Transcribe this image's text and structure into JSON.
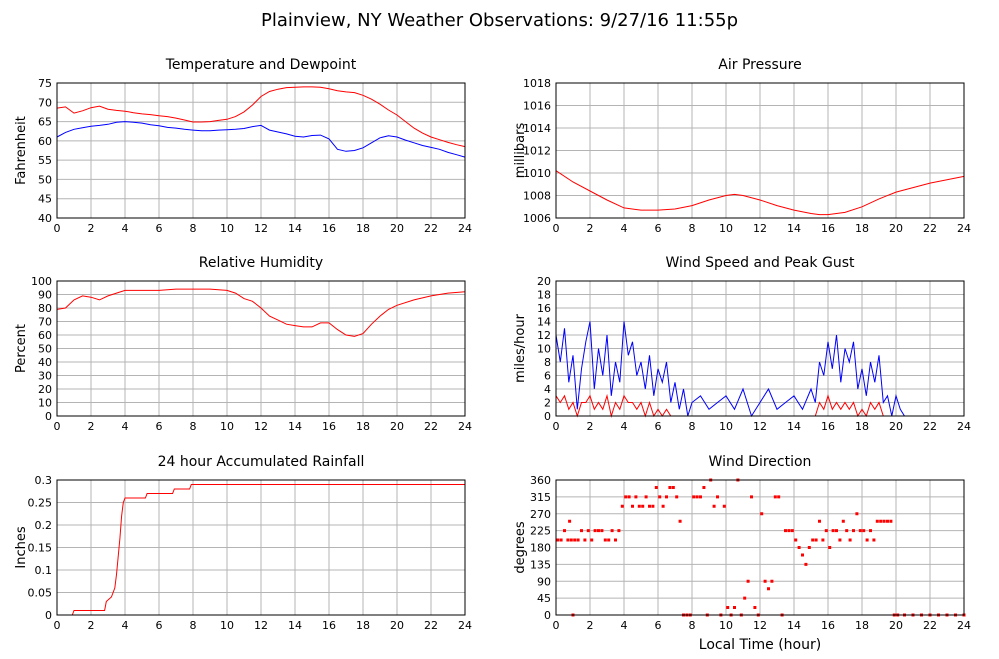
{
  "page_title": "Plainview, NY Weather Observations: 9/27/16 11:55p",
  "x_axis_label": "Local Time (hour)",
  "chart_data": [
    {
      "id": "temp",
      "type": "line",
      "title": "Temperature and Dewpoint",
      "xlabel": "",
      "ylabel": "Fahrenheit",
      "xlim": [
        0,
        24
      ],
      "ylim": [
        40,
        75
      ],
      "xticks": [
        0,
        2,
        4,
        6,
        8,
        10,
        12,
        14,
        16,
        18,
        20,
        22,
        24
      ],
      "yticks": [
        40,
        45,
        50,
        55,
        60,
        65,
        70,
        75
      ],
      "grid": true,
      "x": [
        0,
        0.5,
        1,
        1.5,
        2,
        2.5,
        3,
        3.5,
        4,
        4.5,
        5,
        5.5,
        6,
        6.5,
        7,
        7.5,
        8,
        8.5,
        9,
        9.5,
        10,
        10.5,
        11,
        11.5,
        12,
        12.5,
        13,
        13.5,
        14,
        14.5,
        15,
        15.5,
        16,
        16.5,
        17,
        17.5,
        18,
        18.5,
        19,
        19.5,
        20,
        20.5,
        21,
        21.5,
        22,
        22.5,
        23,
        23.5,
        24
      ],
      "series": [
        {
          "color": "#ff0000",
          "values": [
            68.5,
            68.8,
            67.2,
            67.8,
            68.6,
            69.0,
            68.2,
            67.9,
            67.7,
            67.3,
            67.0,
            66.8,
            66.5,
            66.3,
            65.9,
            65.4,
            64.9,
            64.9,
            65.0,
            65.3,
            65.6,
            66.3,
            67.5,
            69.3,
            71.5,
            72.8,
            73.4,
            73.8,
            73.9,
            74.0,
            74.0,
            73.9,
            73.5,
            73.0,
            72.7,
            72.5,
            71.8,
            70.8,
            69.5,
            68.0,
            66.7,
            65.0,
            63.3,
            62.0,
            61.0,
            60.3,
            59.6,
            59.0,
            58.5
          ]
        },
        {
          "color": "#0000ff",
          "values": [
            61.0,
            62.2,
            63.0,
            63.4,
            63.8,
            64.0,
            64.3,
            64.8,
            65.0,
            64.8,
            64.6,
            64.2,
            63.9,
            63.5,
            63.3,
            63.0,
            62.8,
            62.6,
            62.6,
            62.8,
            62.9,
            63.0,
            63.2,
            63.7,
            64.0,
            62.8,
            62.3,
            61.8,
            61.2,
            61.0,
            61.4,
            61.5,
            60.5,
            57.8,
            57.3,
            57.5,
            58.2,
            59.5,
            60.8,
            61.3,
            61.0,
            60.2,
            59.5,
            58.8,
            58.3,
            57.8,
            57.0,
            56.4,
            55.8
          ]
        }
      ]
    },
    {
      "id": "pressure",
      "type": "line",
      "title": "Air Pressure",
      "xlabel": "",
      "ylabel": "millibars",
      "xlim": [
        0,
        24
      ],
      "ylim": [
        1006,
        1018
      ],
      "xticks": [
        0,
        2,
        4,
        6,
        8,
        10,
        12,
        14,
        16,
        18,
        20,
        22,
        24
      ],
      "yticks": [
        1006,
        1008,
        1010,
        1012,
        1014,
        1016,
        1018
      ],
      "grid": true,
      "x": [
        0,
        1,
        2,
        3,
        4,
        5,
        6,
        7,
        8,
        9,
        10,
        10.5,
        11,
        12,
        13,
        14,
        15,
        15.5,
        16,
        17,
        18,
        19,
        20,
        21,
        22,
        23,
        24
      ],
      "series": [
        {
          "color": "#ff0000",
          "values": [
            1010.2,
            1009.2,
            1008.4,
            1007.6,
            1006.9,
            1006.7,
            1006.7,
            1006.8,
            1007.1,
            1007.6,
            1008.0,
            1008.1,
            1008.0,
            1007.6,
            1007.1,
            1006.7,
            1006.4,
            1006.3,
            1006.3,
            1006.5,
            1007.0,
            1007.7,
            1008.3,
            1008.7,
            1009.1,
            1009.4,
            1009.7
          ]
        }
      ]
    },
    {
      "id": "humidity",
      "type": "line",
      "title": "Relative Humidity",
      "xlabel": "",
      "ylabel": "Percent",
      "xlim": [
        0,
        24
      ],
      "ylim": [
        0,
        100
      ],
      "xticks": [
        0,
        2,
        4,
        6,
        8,
        10,
        12,
        14,
        16,
        18,
        20,
        22,
        24
      ],
      "yticks": [
        0,
        10,
        20,
        30,
        40,
        50,
        60,
        70,
        80,
        90,
        100
      ],
      "grid": true,
      "x": [
        0,
        0.5,
        1,
        1.5,
        2,
        2.5,
        3,
        3.5,
        4,
        5,
        6,
        7,
        8,
        9,
        10,
        10.5,
        11,
        11.5,
        12,
        12.5,
        13,
        13.5,
        14,
        14.5,
        15,
        15.5,
        16,
        16.5,
        17,
        17.5,
        18,
        18.5,
        19,
        19.5,
        20,
        21,
        22,
        23,
        24
      ],
      "series": [
        {
          "color": "#ff0000",
          "values": [
            79,
            80,
            86,
            89,
            88,
            86,
            89,
            91,
            93,
            93,
            93,
            94,
            94,
            94,
            93,
            91,
            87,
            85,
            80,
            74,
            71,
            68,
            67,
            66,
            66,
            69,
            69,
            64,
            60,
            59,
            61,
            68,
            74,
            79,
            82,
            86,
            89,
            91,
            92
          ]
        }
      ]
    },
    {
      "id": "wind",
      "type": "line",
      "title": "Wind Speed and Peak Gust",
      "xlabel": "",
      "ylabel": "miles/hour",
      "xlim": [
        0,
        24
      ],
      "ylim": [
        0,
        20
      ],
      "xticks": [
        0,
        2,
        4,
        6,
        8,
        10,
        12,
        14,
        16,
        18,
        20,
        22,
        24
      ],
      "yticks": [
        0,
        2,
        4,
        6,
        8,
        10,
        12,
        14,
        16,
        18,
        20
      ],
      "grid": true,
      "x": [
        0,
        0.25,
        0.5,
        0.75,
        1,
        1.25,
        1.5,
        1.75,
        2,
        2.25,
        2.5,
        2.75,
        3,
        3.25,
        3.5,
        3.75,
        4,
        4.25,
        4.5,
        4.75,
        5,
        5.25,
        5.5,
        5.75,
        6,
        6.25,
        6.5,
        6.75,
        7,
        7.25,
        7.5,
        7.75,
        8,
        8.5,
        9,
        9.5,
        10,
        10.5,
        11,
        11.5,
        12,
        12.5,
        13,
        13.5,
        14,
        14.5,
        15,
        15.25,
        15.5,
        15.75,
        16,
        16.25,
        16.5,
        16.75,
        17,
        17.25,
        17.5,
        17.75,
        18,
        18.25,
        18.5,
        18.75,
        19,
        19.25,
        19.5,
        19.75,
        20,
        20.25,
        20.5,
        21,
        22,
        23,
        24
      ],
      "series": [
        {
          "color": "#0000ff",
          "values": [
            12,
            8,
            13,
            5,
            9,
            1,
            7,
            11,
            14,
            4,
            10,
            6,
            12,
            3,
            8,
            5,
            14,
            9,
            11,
            6,
            8,
            4,
            9,
            3,
            7,
            5,
            8,
            2,
            5,
            1,
            4,
            0,
            2,
            3,
            1,
            2,
            3,
            1,
            4,
            0,
            2,
            4,
            1,
            2,
            3,
            1,
            4,
            2,
            8,
            6,
            11,
            7,
            12,
            5,
            10,
            8,
            11,
            4,
            7,
            3,
            8,
            5,
            9,
            2,
            3,
            0,
            3,
            1,
            0,
            0,
            0,
            0,
            0
          ]
        },
        {
          "color": "#ff0000",
          "values": [
            3,
            2,
            3,
            1,
            2,
            0,
            2,
            2,
            3,
            1,
            2,
            1,
            3,
            0,
            2,
            1,
            3,
            2,
            2,
            1,
            2,
            0,
            2,
            0,
            1,
            0,
            1,
            0,
            0,
            0,
            0,
            0,
            0,
            0,
            0,
            0,
            0,
            0,
            0,
            0,
            0,
            0,
            0,
            0,
            0,
            0,
            0,
            0,
            2,
            1,
            3,
            1,
            2,
            1,
            2,
            1,
            2,
            0,
            1,
            0,
            2,
            1,
            2,
            0,
            0,
            0,
            0,
            0,
            0,
            0,
            0,
            0,
            0
          ]
        }
      ]
    },
    {
      "id": "rain",
      "type": "line",
      "title": "24 hour Accumulated Rainfall",
      "xlabel": "",
      "ylabel": "Inches",
      "xlim": [
        0,
        24
      ],
      "ylim": [
        0,
        0.3
      ],
      "xticks": [
        0,
        2,
        4,
        6,
        8,
        10,
        12,
        14,
        16,
        18,
        20,
        22,
        24
      ],
      "yticks": [
        0,
        0.05,
        0.1,
        0.15,
        0.2,
        0.25,
        0.3
      ],
      "grid": true,
      "x": [
        0,
        0.9,
        1,
        2.8,
        2.9,
        3.2,
        3.4,
        3.5,
        3.6,
        3.7,
        3.8,
        3.9,
        4.0,
        5.2,
        5.3,
        6.8,
        6.9,
        7.8,
        7.9,
        24
      ],
      "series": [
        {
          "color": "#ff0000",
          "values": [
            0,
            0,
            0.01,
            0.01,
            0.03,
            0.04,
            0.06,
            0.09,
            0.13,
            0.17,
            0.22,
            0.25,
            0.26,
            0.26,
            0.27,
            0.27,
            0.28,
            0.28,
            0.29,
            0.29
          ]
        }
      ]
    },
    {
      "id": "direction",
      "type": "scatter",
      "title": "Wind Direction",
      "xlabel": "Local Time (hour)",
      "ylabel": "degrees",
      "xlim": [
        0,
        24
      ],
      "ylim": [
        0,
        360
      ],
      "xticks": [
        0,
        2,
        4,
        6,
        8,
        10,
        12,
        14,
        16,
        18,
        20,
        22,
        24
      ],
      "yticks": [
        0,
        45,
        90,
        135,
        180,
        225,
        270,
        315,
        360
      ],
      "grid": true,
      "series": [
        {
          "color": "#ff0000",
          "x": [
            0.1,
            0.3,
            0.5,
            0.7,
            0.8,
            0.9,
            1.0,
            1.1,
            1.3,
            1.5,
            1.7,
            1.9,
            2.1,
            2.3,
            2.5,
            2.7,
            2.9,
            3.1,
            3.3,
            3.5,
            3.7,
            3.9,
            4.1,
            4.3,
            4.5,
            4.7,
            4.9,
            5.1,
            5.3,
            5.5,
            5.7,
            5.9,
            6.1,
            6.3,
            6.5,
            6.7,
            6.9,
            7.1,
            7.3,
            7.5,
            7.7,
            7.9,
            8.1,
            8.3,
            8.5,
            8.7,
            8.9,
            9.1,
            9.3,
            9.5,
            9.7,
            9.9,
            10.1,
            10.3,
            10.5,
            10.7,
            10.9,
            11.1,
            11.3,
            11.5,
            11.7,
            11.9,
            12.1,
            12.3,
            12.5,
            12.7,
            12.9,
            13.1,
            13.3,
            13.5,
            13.7,
            13.9,
            14.1,
            14.3,
            14.5,
            14.7,
            14.9,
            15.1,
            15.3,
            15.5,
            15.7,
            15.9,
            16.1,
            16.3,
            16.5,
            16.7,
            16.9,
            17.1,
            17.3,
            17.5,
            17.7,
            17.9,
            18.1,
            18.3,
            18.5,
            18.7,
            18.9,
            19.1,
            19.3,
            19.5,
            19.7,
            19.9,
            20.1,
            20.5,
            21.0,
            21.5,
            22.0,
            22.5,
            23.0,
            23.5,
            24.0
          ],
          "values": [
            200,
            200,
            225,
            200,
            250,
            200,
            0,
            200,
            200,
            225,
            200,
            225,
            200,
            225,
            225,
            225,
            200,
            200,
            225,
            200,
            225,
            290,
            315,
            315,
            290,
            315,
            290,
            290,
            315,
            290,
            290,
            340,
            315,
            290,
            315,
            340,
            340,
            315,
            250,
            0,
            0,
            0,
            315,
            315,
            315,
            340,
            0,
            360,
            290,
            315,
            0,
            290,
            20,
            0,
            20,
            360,
            0,
            45,
            90,
            315,
            20,
            0,
            270,
            90,
            70,
            90,
            315,
            315,
            0,
            225,
            225,
            225,
            200,
            180,
            160,
            135,
            180,
            200,
            200,
            250,
            200,
            225,
            180,
            225,
            225,
            200,
            250,
            225,
            200,
            225,
            270,
            225,
            225,
            200,
            225,
            200,
            250,
            250,
            250,
            250,
            250,
            0,
            0,
            0,
            0,
            0,
            0,
            0,
            0,
            0,
            0
          ]
        }
      ]
    }
  ]
}
